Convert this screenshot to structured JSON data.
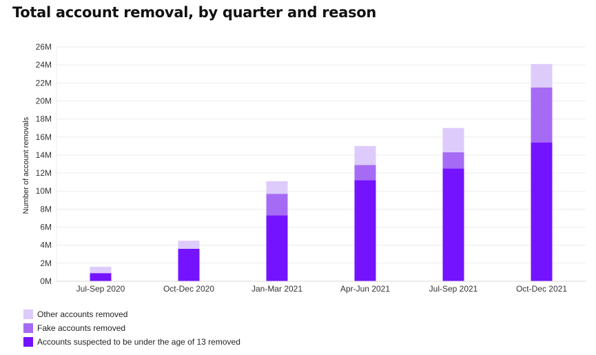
{
  "title": "Total account removal, by quarter and reason",
  "chart_data": {
    "type": "bar",
    "stacked": true,
    "title": "Total account removal, by quarter and reason",
    "xlabel": "",
    "ylabel": "Number of account removals",
    "ylim": [
      0,
      26
    ],
    "ytick_values": [
      0,
      2,
      4,
      6,
      8,
      10,
      12,
      14,
      16,
      18,
      20,
      22,
      24,
      26
    ],
    "ytick_labels": [
      "0M",
      "2M",
      "4M",
      "6M",
      "8M",
      "10M",
      "12M",
      "14M",
      "16M",
      "18M",
      "20M",
      "22M",
      "24M",
      "26M"
    ],
    "unit": "M",
    "grid": true,
    "legend_position": "bottom-left",
    "categories": [
      "Jul-Sep 2020",
      "Oct-Dec 2020",
      "Jan-Mar 2021",
      "Apr-Jun 2021",
      "Jul-Sep 2021",
      "Oct-Dec 2021"
    ],
    "series": [
      {
        "name": "Accounts suspected to be under the age of 13 removed",
        "color": "#7413ff",
        "values": [
          0.9,
          3.6,
          7.3,
          11.2,
          12.5,
          15.4
        ]
      },
      {
        "name": "Fake accounts removed",
        "color": "#a66bf5",
        "values": [
          0.0,
          0.0,
          2.4,
          1.7,
          1.8,
          6.1
        ]
      },
      {
        "name": "Other accounts removed",
        "color": "#ddcbfb",
        "values": [
          0.7,
          0.9,
          1.4,
          2.1,
          2.7,
          2.6
        ]
      }
    ],
    "legend_order": [
      2,
      1,
      0
    ]
  }
}
